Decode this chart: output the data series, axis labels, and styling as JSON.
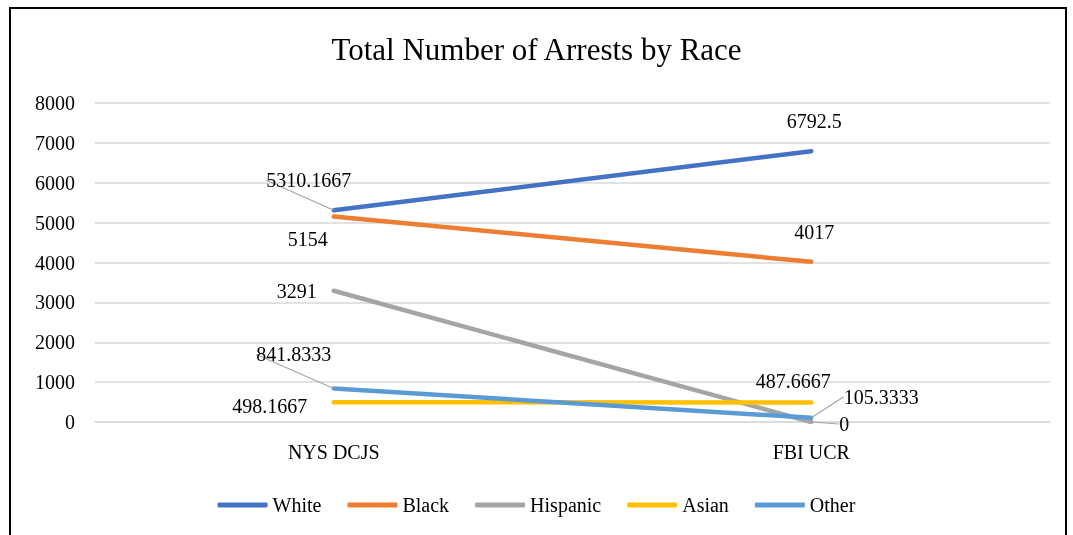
{
  "chart_data": {
    "type": "line",
    "title": "Total Number of Arrests by Race",
    "categories": [
      "NYS DCJS",
      "FBI UCR"
    ],
    "series": [
      {
        "name": "White",
        "color": "#4472c4",
        "values": [
          5310.1667,
          6792.5
        ]
      },
      {
        "name": "Black",
        "color": "#ed7d31",
        "values": [
          5154,
          4017
        ]
      },
      {
        "name": "Hispanic",
        "color": "#a5a5a5",
        "values": [
          3291,
          0
        ]
      },
      {
        "name": "Asian",
        "color": "#ffc000",
        "values": [
          498.1667,
          487.6667
        ]
      },
      {
        "name": "Other",
        "color": "#5b9bd5",
        "values": [
          841.8333,
          105.3333
        ]
      }
    ],
    "ylim": [
      0,
      8000
    ],
    "yticks": [
      0,
      1000,
      2000,
      3000,
      4000,
      5000,
      6000,
      7000,
      8000
    ],
    "grid": "y",
    "legend": "bottom",
    "data_labels": true,
    "marker": "none"
  }
}
